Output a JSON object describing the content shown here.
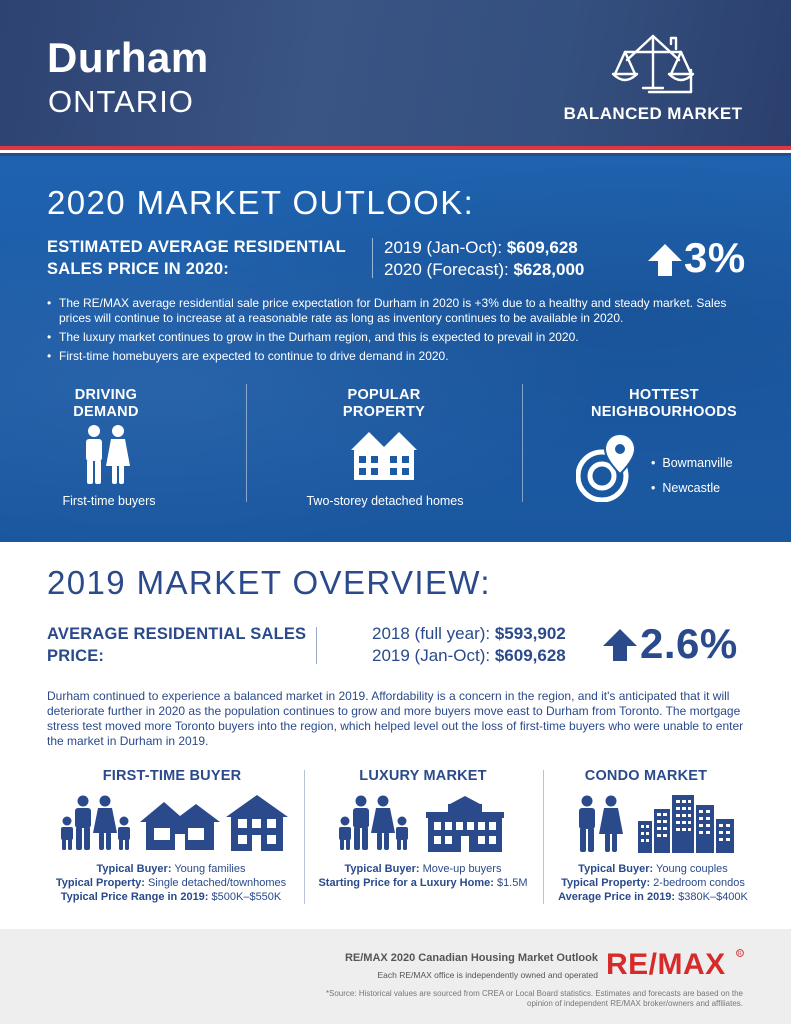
{
  "header": {
    "city": "Durham",
    "province": "ONTARIO",
    "market_status": "BALANCED MARKET",
    "icon": "balance-scale-house-icon"
  },
  "outlook": {
    "title": "2020 MARKET OUTLOOK:",
    "estimate_label": "ESTIMATED AVERAGE RESIDENTIAL SALES PRICE IN 2020:",
    "row1_label": "2019 (Jan-Oct): ",
    "row1_value": "$609,628",
    "row2_label": "2020 (Forecast): ",
    "row2_value": "$628,000",
    "change": "3%",
    "change_direction": "up",
    "bullets": [
      "The RE/MAX average residential sale price expectation for Durham in 2020 is +3% due to a healthy and steady market. Sales prices will continue to increase at a reasonable rate as long as inventory continues to be available in 2020.",
      "The luxury market continues to grow in the Durham region, and this is expected to prevail in 2020.",
      "First-time homebuyers are expected to continue to drive demand in 2020."
    ],
    "driving_demand": {
      "heading": "DRIVING DEMAND",
      "caption": "First-time buyers",
      "icon": "couple-icon"
    },
    "popular_property": {
      "heading": "POPULAR PROPERTY",
      "caption": "Two-storey detached homes",
      "icon": "house-icon"
    },
    "hottest": {
      "heading": "HOTTEST NEIGHBOURHOODS",
      "icon": "map-pin-target-icon",
      "items": [
        "Bowmanville",
        "Newcastle"
      ]
    }
  },
  "overview": {
    "title": "2019 MARKET OVERVIEW:",
    "avg_label": "AVERAGE RESIDENTIAL SALES PRICE:",
    "row1_label": "2018 (full year): ",
    "row1_value": "$593,902",
    "row2_label": "2019 (Jan-Oct): ",
    "row2_value": "$609,628",
    "change": "2.6%",
    "change_direction": "up",
    "paragraph": "Durham continued to experience a balanced market in 2019. Affordability is a concern in the region, and it's anticipated that it will deteriorate further in 2020 as the population continues to grow and more buyers move east to Durham from Toronto. The mortgage stress test moved more Toronto buyers into the region, which helped level out the loss of first-time buyers who were unable to enter the market in Durham in 2019.",
    "segments": [
      {
        "heading": "FIRST-TIME BUYER",
        "icons": [
          "family-icon",
          "bungalow-icon",
          "two-storey-house-icon"
        ],
        "lines": [
          {
            "label": "Typical Buyer:",
            "value": " Young families"
          },
          {
            "label": "Typical Property:",
            "value": " Single detached/townhomes"
          },
          {
            "label": "Typical Price Range in 2019:",
            "value": " $500K–$550K"
          }
        ]
      },
      {
        "heading": "LUXURY MARKET",
        "icons": [
          "family-icon",
          "large-house-icon"
        ],
        "lines": [
          {
            "label": "Typical Buyer:",
            "value": " Move-up buyers"
          },
          {
            "label": "Starting Price for a Luxury Home:",
            "value": " $1.5M"
          }
        ]
      },
      {
        "heading": "CONDO MARKET",
        "icons": [
          "couple-icon",
          "condo-buildings-icon"
        ],
        "lines": [
          {
            "label": "Typical Buyer:",
            "value": " Young couples"
          },
          {
            "label": "Typical Property:",
            "value": " 2-bedroom condos"
          },
          {
            "label": "Average Price in 2019:",
            "value": " $380K–$400K"
          }
        ]
      }
    ]
  },
  "footer": {
    "title": "RE/MAX 2020 Canadian Housing Market Outlook",
    "note": "Each RE/MAX office is independently owned and operated",
    "source": "*Source: Historical values are sourced from CREA or Local Board statistics. Estimates and forecasts are based on the opinion of independent RE/MAX broker/owners and affiliates.",
    "logo_text": "RE/MAX"
  },
  "colors": {
    "navy": "#2a4a8c",
    "header_bg": "#2f4675",
    "outlook_bg": "#1f63b0",
    "accent_red": "#e0363f",
    "footer_bg": "#eeeeee"
  }
}
